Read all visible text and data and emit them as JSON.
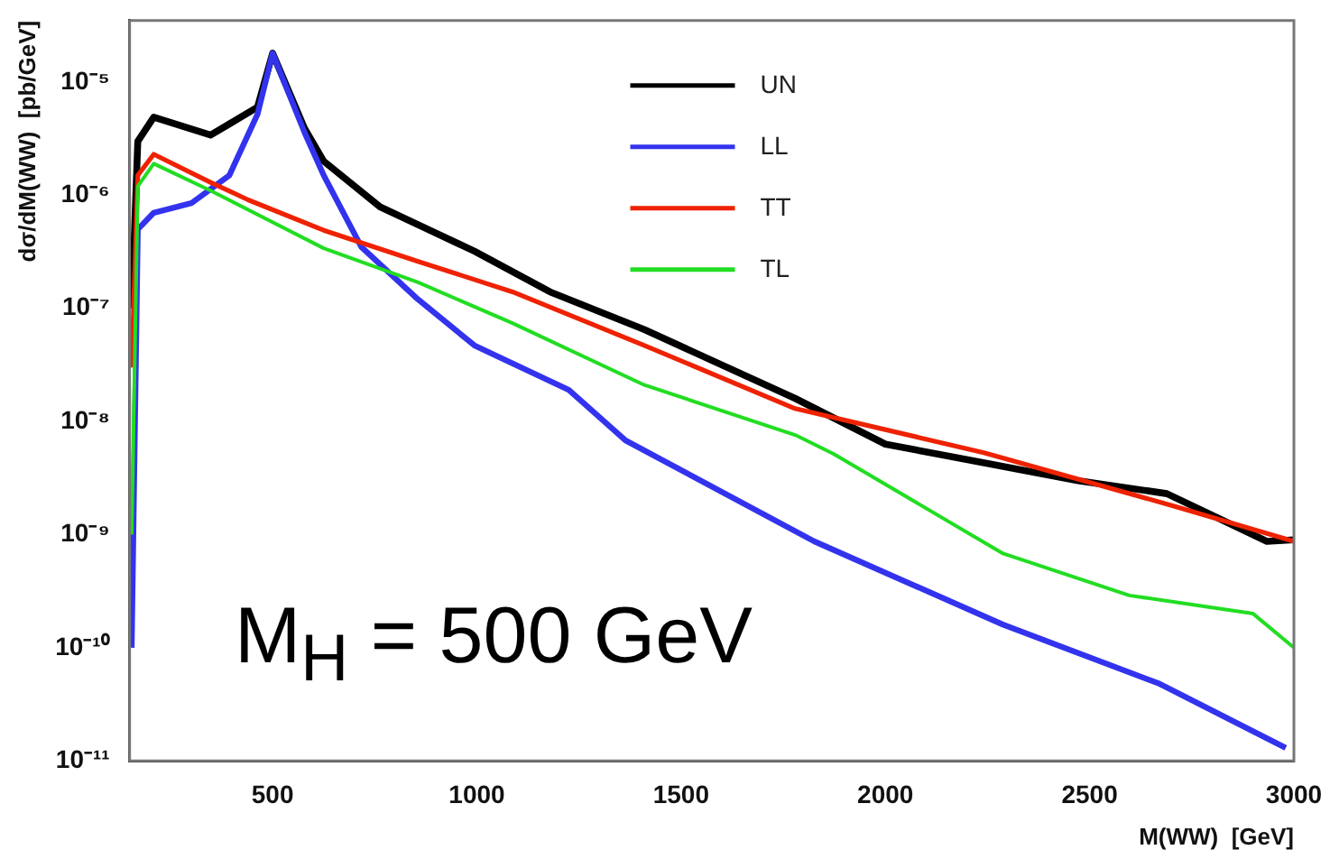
{
  "chart_data": {
    "type": "line",
    "xlabel": "M(WW)  [GeV]",
    "ylabel": "dσ/dM(WW)  [pb/GeV]",
    "log": "y",
    "legend": "top right",
    "grid": false,
    "xlim": [
      150,
      3000
    ],
    "xticks": [
      500,
      1000,
      1500,
      2000,
      2500,
      3000
    ],
    "ylim": [
      1e-11,
      3.5e-05
    ],
    "yticks": [
      {
        "value": 1e-11,
        "label": "10⁻¹¹"
      },
      {
        "value": 1e-10,
        "label": "10⁻¹⁰"
      },
      {
        "value": 1e-09,
        "label": "10⁻⁹"
      },
      {
        "value": 1e-08,
        "label": "10⁻⁸"
      },
      {
        "value": 1e-07,
        "label": "10⁻⁷"
      },
      {
        "value": 1e-06,
        "label": "10⁻⁶"
      },
      {
        "value": 1e-05,
        "label": "10⁻⁵"
      }
    ],
    "annotations": [
      "M$_{H}$ = 500 GeV"
    ],
    "series": [
      {
        "name": "UN",
        "color": "#000000",
        "x": [
          155,
          170,
          209,
          348,
          463,
          500,
          578,
          625,
          763,
          994,
          1179,
          1410,
          1779,
          2000,
          2472,
          2689,
          2934,
          3000
        ],
        "values": [
          1e-07,
          3e-06,
          4.9e-06,
          3.4e-06,
          6e-06,
          1.8e-05,
          3.9e-06,
          2e-06,
          7.9e-07,
          3.2e-07,
          1.4e-07,
          6.5e-08,
          1.6e-08,
          6.3e-09,
          3e-09,
          2.3e-09,
          8.7e-10,
          9e-10
        ]
      },
      {
        "name": "LL",
        "color": "#3333ee",
        "x": [
          155,
          170,
          209,
          301,
          394,
          463,
          500,
          578,
          625,
          717,
          856,
          994,
          1225,
          1364,
          1826,
          2288,
          2671,
          2980
        ],
        "values": [
          1e-10,
          5e-07,
          7e-07,
          8.5e-07,
          1.5e-06,
          5.2e-06,
          1.8e-05,
          3.6e-06,
          1.5e-06,
          3.5e-07,
          1.2e-07,
          4.7e-08,
          1.9e-08,
          6.8e-09,
          8.7e-10,
          1.6e-10,
          4.8e-11,
          1.3e-11
        ]
      },
      {
        "name": "TT",
        "color": "#ee2200",
        "x": [
          155,
          170,
          209,
          348,
          440,
          625,
          856,
          1087,
          1410,
          1779,
          2241,
          2703,
          3000
        ],
        "values": [
          3e-08,
          1.5e-06,
          2.3e-06,
          1.3e-06,
          9.1e-07,
          4.9e-07,
          2.6e-07,
          1.4e-07,
          4.7e-08,
          1.3e-08,
          5.3e-09,
          1.8e-09,
          8.7e-10
        ]
      },
      {
        "name": "TL",
        "color": "#22dd22",
        "x": [
          155,
          170,
          209,
          348,
          625,
          856,
          1087,
          1410,
          1779,
          1872,
          2288,
          2597,
          2900,
          3000
        ],
        "values": [
          1e-09,
          1.2e-06,
          1.9e-06,
          1.1e-06,
          3.4e-07,
          1.7e-07,
          7.4e-08,
          2.1e-08,
          7.6e-09,
          5.2e-09,
          6.8e-10,
          2.9e-10,
          2e-10,
          1e-10
        ]
      }
    ]
  }
}
